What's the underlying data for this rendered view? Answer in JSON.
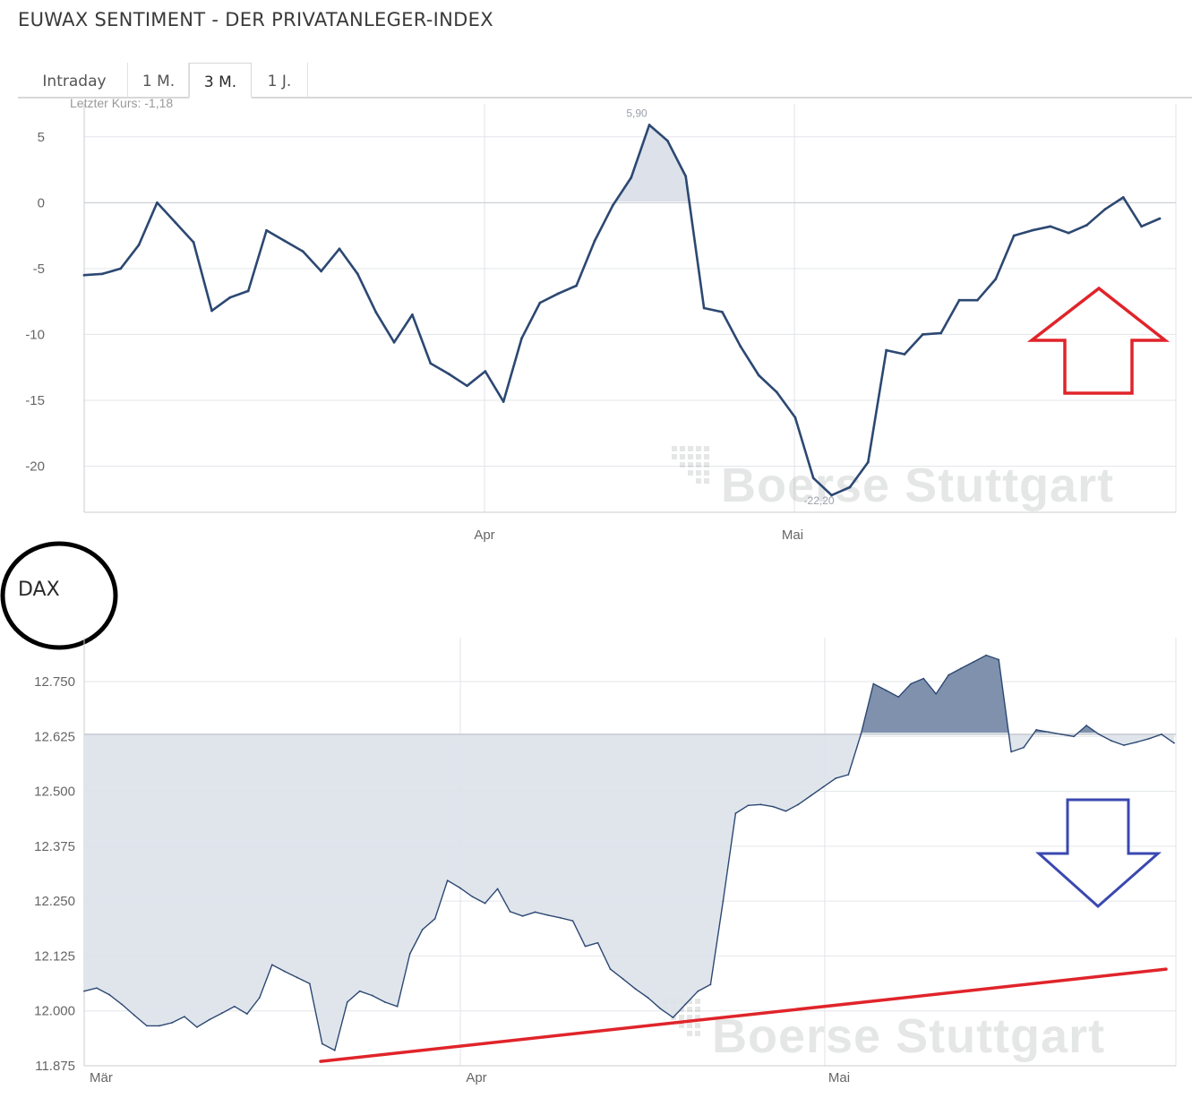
{
  "page_title": "EUWAX SENTIMENT - DER PRIVATANLEGER-INDEX",
  "tabs": [
    {
      "label": "Intraday",
      "active": false
    },
    {
      "label": "1 M.",
      "active": false
    },
    {
      "label": "3 M.",
      "active": true
    },
    {
      "label": "1 J.",
      "active": false
    }
  ],
  "watermark": "Boerse Stuttgart",
  "dax_label": "DAX",
  "chart_data": [
    {
      "type": "line",
      "last_price_label": "Letzter Kurs: -1,18",
      "x_tick_labels": [
        "Apr",
        "Mai"
      ],
      "y_ticks": [
        5,
        0,
        -5,
        -10,
        -15,
        -20
      ],
      "y_tick_labels": [
        "5",
        "0",
        "-5",
        "-10",
        "-15",
        "-20"
      ],
      "ylim": [
        -23.5,
        7.5
      ],
      "baseline": 0,
      "max_label": "5,90",
      "min_label": "-22,20",
      "max_value": 5.9,
      "min_value": -22.2,
      "values": [
        -5.5,
        -5.4,
        -5.0,
        -3.2,
        0.0,
        -1.5,
        -3.0,
        -8.2,
        -7.2,
        -6.7,
        -2.1,
        -2.9,
        -3.7,
        -5.2,
        -3.5,
        -5.4,
        -8.3,
        -10.6,
        -8.5,
        -12.2,
        -13.0,
        -13.9,
        -12.8,
        -15.1,
        -10.3,
        -7.6,
        -6.9,
        -6.3,
        -2.9,
        -0.2,
        1.9,
        5.9,
        4.7,
        2.0,
        -8.0,
        -8.3,
        -10.9,
        -13.1,
        -14.4,
        -16.3,
        -20.9,
        -22.2,
        -21.6,
        -19.7,
        -11.2,
        -11.5,
        -10.0,
        -9.9,
        -7.4,
        -7.4,
        -5.8,
        -2.5,
        -2.1,
        -1.8,
        -2.3,
        -1.7,
        -0.5,
        0.4,
        -1.8,
        -1.2
      ],
      "annotation_arrow": {
        "direction": "up",
        "color": "#e0242a"
      }
    },
    {
      "type": "area",
      "x_tick_labels": [
        "Mär",
        "Apr",
        "Mai"
      ],
      "y_ticks": [
        12750,
        12625,
        12500,
        12375,
        12250,
        12125,
        12000,
        11875
      ],
      "y_tick_labels": [
        "12.750",
        "12.625",
        "12.500",
        "12.375",
        "12.250",
        "12.125",
        "12.000",
        "11.875"
      ],
      "ylim": [
        11875,
        12850
      ],
      "baseline": 12630,
      "values": [
        12045,
        12052,
        12037,
        12015,
        11990,
        11966,
        11966,
        11973,
        11987,
        11963,
        11980,
        11995,
        12010,
        11993,
        12030,
        12105,
        12090,
        12076,
        12062,
        11925,
        11910,
        12020,
        12045,
        12035,
        12020,
        12010,
        12130,
        12185,
        12210,
        12297,
        12280,
        12260,
        12245,
        12278,
        12226,
        12216,
        12225,
        12218,
        12212,
        12205,
        12147,
        12155,
        12095,
        12073,
        12050,
        12030,
        12005,
        11985,
        12015,
        12045,
        12060,
        12250,
        12450,
        12468,
        12470,
        12465,
        12455,
        12470,
        12490,
        12510,
        12530,
        12538,
        12630,
        12745,
        12730,
        12715,
        12745,
        12757,
        12722,
        12765,
        12780,
        12795,
        12810,
        12800,
        12590,
        12600,
        12640,
        12635,
        12630,
        12625,
        12650,
        12630,
        12615,
        12605,
        12612,
        12620,
        12630,
        12610
      ],
      "trendline": {
        "start_value": 11885,
        "end_value": 12095,
        "color": "#e0242a"
      },
      "annotation_arrow": {
        "direction": "down",
        "color": "#3a48b0"
      }
    }
  ]
}
